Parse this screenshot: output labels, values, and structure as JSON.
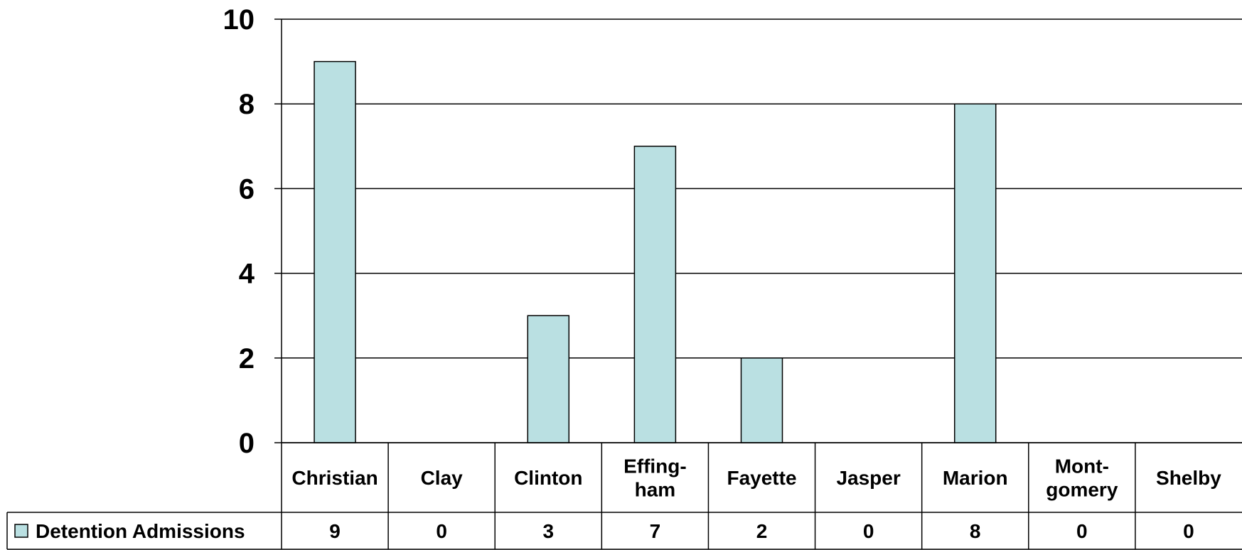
{
  "chart_data": {
    "type": "bar",
    "categories": [
      "Christian",
      "Clay",
      "Clinton",
      "Effing-\nham",
      "Fayette",
      "Jasper",
      "Marion",
      "Mont-\ngomery",
      "Shelby"
    ],
    "series": [
      {
        "name": "Detention Admissions",
        "values": [
          9,
          0,
          3,
          7,
          2,
          0,
          8,
          0,
          0
        ]
      }
    ],
    "ylim": [
      0,
      10
    ],
    "yticks": [
      0,
      2,
      4,
      6,
      8,
      10
    ],
    "grid": true,
    "data_table": true,
    "bar_color": "#BAE0E2",
    "title": "",
    "xlabel": "",
    "ylabel": ""
  }
}
